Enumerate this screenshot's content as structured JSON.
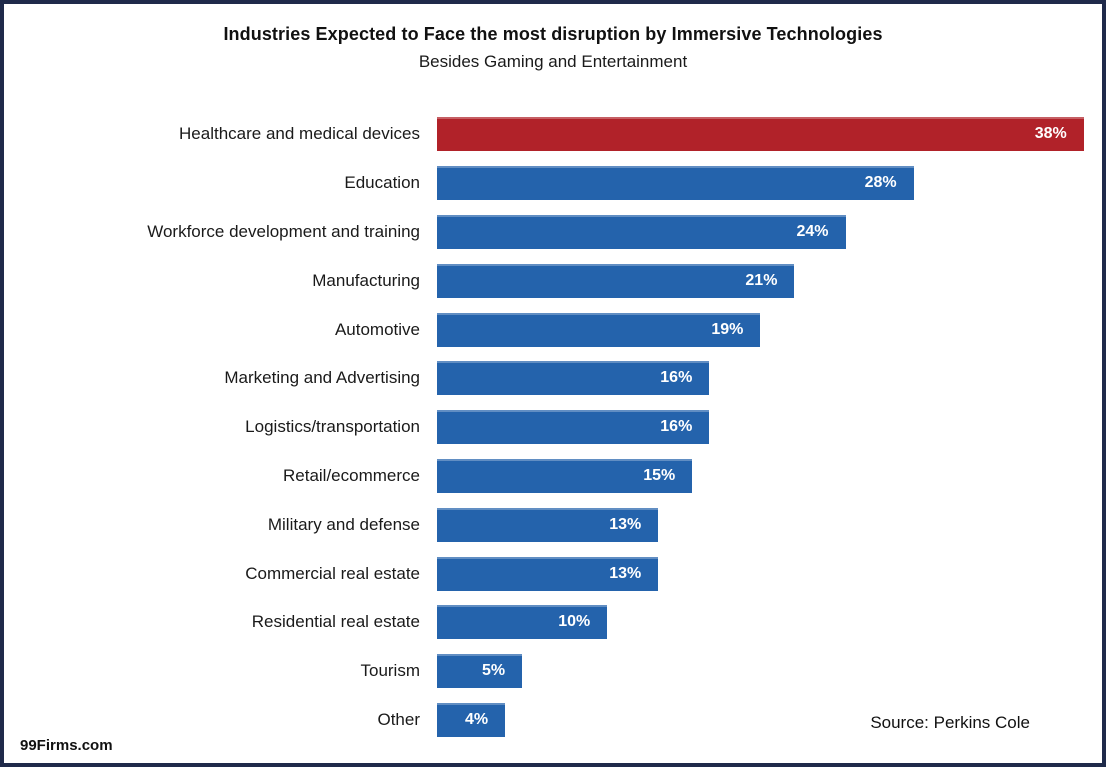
{
  "chart_data": {
    "type": "bar",
    "orientation": "horizontal",
    "title": "Industries Expected to Face the most disruption by Immersive Technologies",
    "subtitle": "Besides Gaming and Entertainment",
    "categories": [
      "Healthcare and medical devices",
      "Education",
      "Workforce development and training",
      "Manufacturing",
      "Automotive",
      "Marketing and Advertising",
      "Logistics/transportation",
      "Retail/ecommerce",
      "Military and defense",
      "Commercial real estate",
      "Residential real estate",
      "Tourism",
      "Other"
    ],
    "values": [
      38,
      28,
      24,
      21,
      19,
      16,
      16,
      15,
      13,
      13,
      10,
      5,
      4
    ],
    "value_labels": [
      "38%",
      "28%",
      "24%",
      "21%",
      "19%",
      "16%",
      "16%",
      "15%",
      "13%",
      "13%",
      "10%",
      "5%",
      "4%"
    ],
    "highlighted_category": "Healthcare and medical devices",
    "xlim": [
      0,
      39
    ],
    "grid": false,
    "legend": "none",
    "colors": {
      "highlight_bar": "#B12229",
      "default_bar": "#2463AC",
      "value_label_text": "#FFFFFF",
      "frame_border": "#1F2A4A"
    }
  },
  "footer": {
    "source": "Source: Perkins Cole",
    "brand": "99Firms.com"
  }
}
